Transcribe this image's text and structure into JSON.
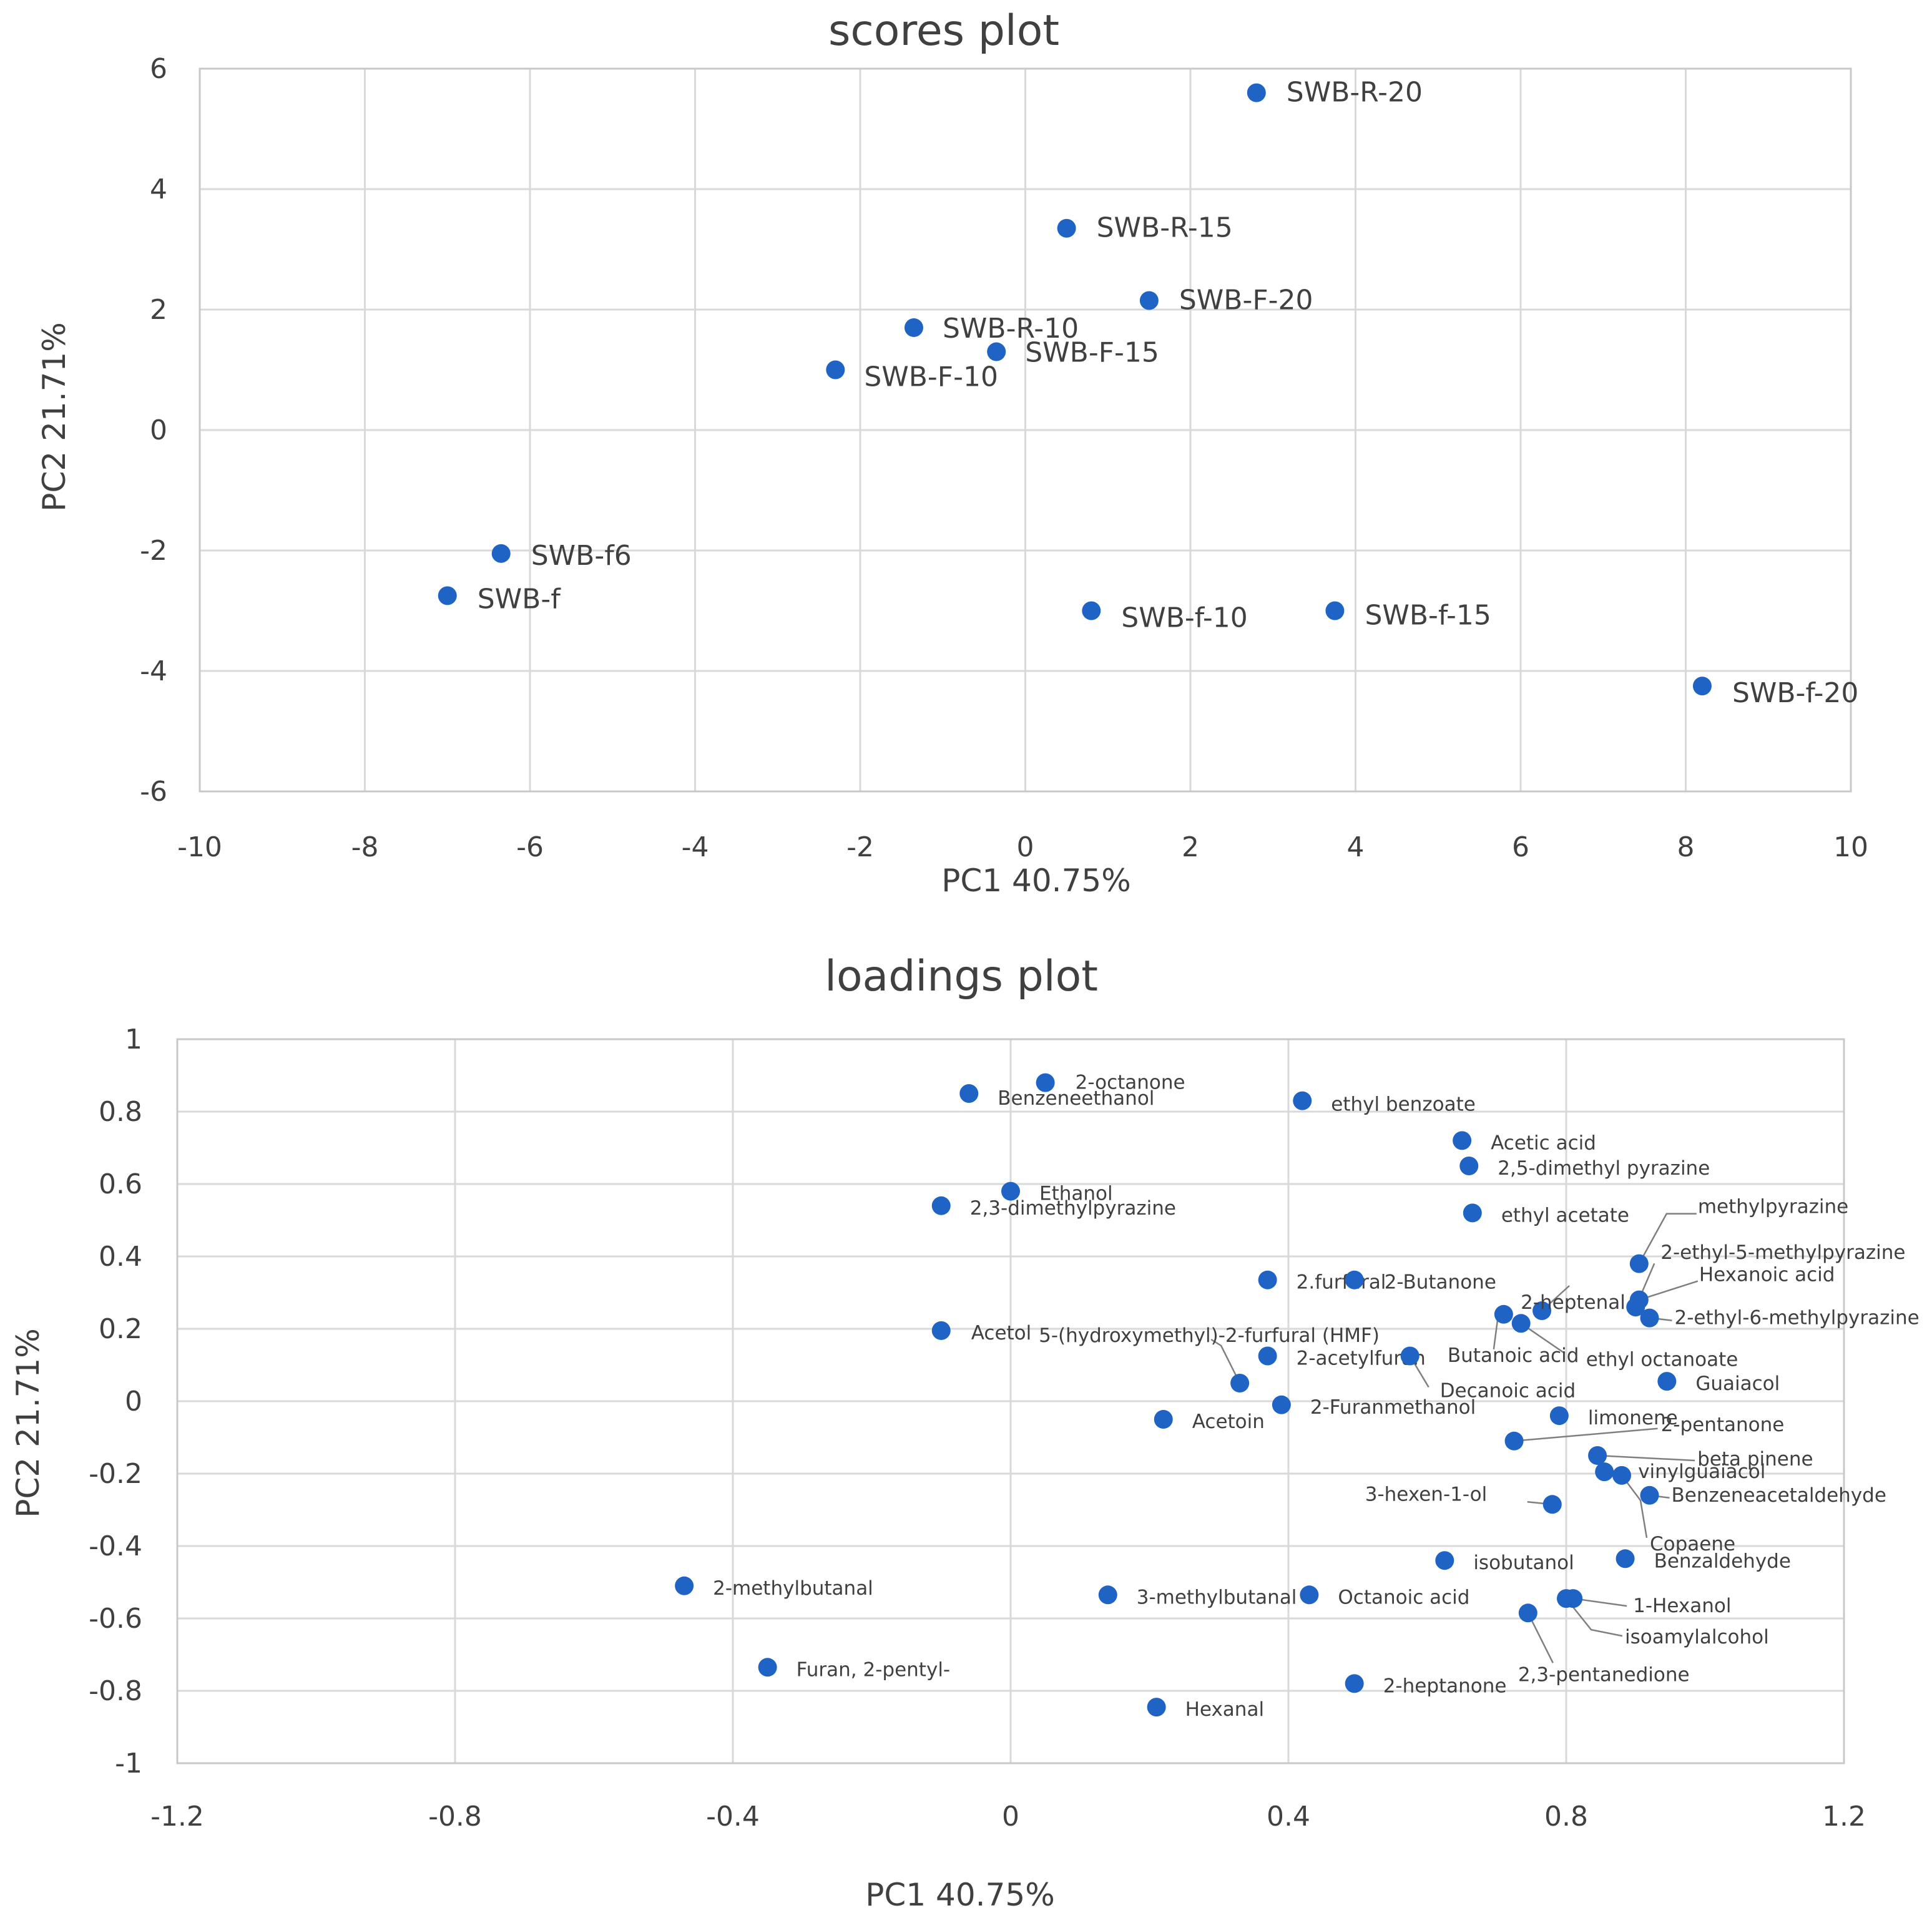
{
  "chart_data": [
    {
      "type": "scatter",
      "title": "scores plot",
      "xlabel": "PC1 40.75%",
      "ylabel": "PC2 21.71%",
      "xlim": [
        -10,
        10
      ],
      "ylim": [
        -6,
        6
      ],
      "xticks": [
        -10,
        -8,
        -6,
        -4,
        -2,
        0,
        2,
        4,
        6,
        8,
        10
      ],
      "yticks": [
        -6,
        -4,
        -2,
        0,
        2,
        4,
        6
      ],
      "grid": true,
      "color": "#1f63c5",
      "points": [
        {
          "label": "SWB-R-20",
          "x": 2.8,
          "y": 5.6
        },
        {
          "label": "SWB-R-15",
          "x": 0.5,
          "y": 3.35
        },
        {
          "label": "SWB-F-20",
          "x": 1.5,
          "y": 2.15
        },
        {
          "label": "SWB-R-10",
          "x": -1.35,
          "y": 1.7
        },
        {
          "label": "SWB-F-15",
          "x": -0.35,
          "y": 1.3
        },
        {
          "label": "SWB-F-10",
          "x": -2.3,
          "y": 1.0
        },
        {
          "label": "SWB-f6",
          "x": -6.35,
          "y": -2.05
        },
        {
          "label": "SWB-f",
          "x": -7.0,
          "y": -2.75
        },
        {
          "label": "SWB-f-10",
          "x": 0.8,
          "y": -3.0
        },
        {
          "label": "SWB-f-15",
          "x": 3.75,
          "y": -3.0
        },
        {
          "label": "SWB-f-20",
          "x": 8.2,
          "y": -4.25
        }
      ]
    },
    {
      "type": "scatter",
      "title": "loadings plot",
      "xlabel": "PC1 40.75%",
      "ylabel": "PC2 21.71%",
      "xlim": [
        -1.2,
        1.2
      ],
      "ylim": [
        -1,
        1
      ],
      "xticks": [
        -1.2,
        -0.8,
        -0.4,
        0,
        0.4,
        0.8,
        1.2
      ],
      "yticks": [
        -1,
        -0.8,
        -0.6,
        -0.4,
        -0.2,
        0,
        0.2,
        0.4,
        0.6,
        0.8,
        1
      ],
      "grid": true,
      "color": "#1f63c5",
      "points": [
        {
          "label": "2-octanone",
          "x": 0.05,
          "y": 0.88
        },
        {
          "label": "Benzeneethanol",
          "x": -0.06,
          "y": 0.85
        },
        {
          "label": "ethyl benzoate",
          "x": 0.42,
          "y": 0.83
        },
        {
          "label": "Acetic acid",
          "x": 0.65,
          "y": 0.72
        },
        {
          "label": "2,5-dimethyl pyrazine",
          "x": 0.66,
          "y": 0.65
        },
        {
          "label": "Ethanol",
          "x": 0.0,
          "y": 0.58
        },
        {
          "label": "2,3-dimethylpyrazine",
          "x": -0.1,
          "y": 0.54
        },
        {
          "label": "ethyl acetate",
          "x": 0.665,
          "y": 0.52
        },
        {
          "label": "methylpyrazine",
          "x": 0.905,
          "y": 0.38
        },
        {
          "label": "2-ethyl-5-methylpyrazine",
          "x": 0.9,
          "y": 0.26
        },
        {
          "label": "Hexanoic acid",
          "x": 0.905,
          "y": 0.28
        },
        {
          "label": "2-ethyl-6-methylpyrazine",
          "x": 0.92,
          "y": 0.23
        },
        {
          "label": "2.furfural",
          "x": 0.37,
          "y": 0.335
        },
        {
          "label": "2-Butanone",
          "x": 0.495,
          "y": 0.335
        },
        {
          "label": "2-heptenal",
          "x": 0.765,
          "y": 0.25
        },
        {
          "label": "Butanoic acid",
          "x": 0.71,
          "y": 0.24
        },
        {
          "label": "ethyl octanoate",
          "x": 0.735,
          "y": 0.215
        },
        {
          "label": "Acetol",
          "x": -0.1,
          "y": 0.195
        },
        {
          "label": "5-(hydroxymethyl)-2-furfural (HMF)",
          "x": 0.33,
          "y": 0.05
        },
        {
          "label": "2-acetylfuran",
          "x": 0.37,
          "y": 0.125
        },
        {
          "label": "Decanoic acid",
          "x": 0.575,
          "y": 0.125
        },
        {
          "label": "Guaiacol",
          "x": 0.945,
          "y": 0.055
        },
        {
          "label": "2-Furanmethanol",
          "x": 0.39,
          "y": -0.01
        },
        {
          "label": "Acetoin",
          "x": 0.22,
          "y": -0.05
        },
        {
          "label": "limonene",
          "x": 0.79,
          "y": -0.04
        },
        {
          "label": "2-pentanone",
          "x": 0.725,
          "y": -0.11
        },
        {
          "label": "beta pinene",
          "x": 0.845,
          "y": -0.15
        },
        {
          "label": "vinylguaiacol",
          "x": 0.855,
          "y": -0.195
        },
        {
          "label": "Copaene",
          "x": 0.88,
          "y": -0.205
        },
        {
          "label": "Benzeneacetaldehyde",
          "x": 0.92,
          "y": -0.26
        },
        {
          "label": "3-hexen-1-ol",
          "x": 0.78,
          "y": -0.285
        },
        {
          "label": "isobutanol",
          "x": 0.625,
          "y": -0.44
        },
        {
          "label": "Benzaldehyde",
          "x": 0.885,
          "y": -0.435
        },
        {
          "label": "2-methylbutanal",
          "x": -0.47,
          "y": -0.51
        },
        {
          "label": "3-methylbutanal",
          "x": 0.14,
          "y": -0.535
        },
        {
          "label": "Octanoic acid",
          "x": 0.43,
          "y": -0.535
        },
        {
          "label": "1-Hexanol",
          "x": 0.81,
          "y": -0.545
        },
        {
          "label": "isoamylalcohol",
          "x": 0.8,
          "y": -0.545
        },
        {
          "label": "2,3-pentanedione",
          "x": 0.745,
          "y": -0.585
        },
        {
          "label": "Furan, 2-pentyl-",
          "x": -0.35,
          "y": -0.735
        },
        {
          "label": "2-heptanone",
          "x": 0.495,
          "y": -0.78
        },
        {
          "label": "Hexanal",
          "x": 0.21,
          "y": -0.845
        }
      ]
    }
  ]
}
